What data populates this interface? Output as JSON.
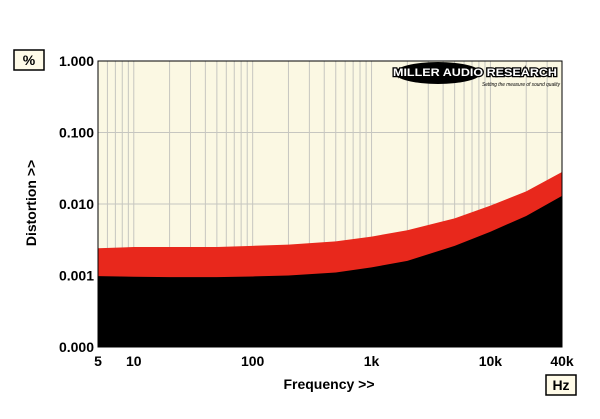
{
  "unit_box_y": "%",
  "unit_box_x": "Hz",
  "logo": {
    "brand": "MILLER AUDIO RESEARCH",
    "tagline": "Setting the measure of sound quality"
  },
  "colors": {
    "plot_bg": "#fbf8e3",
    "grid": "#c6c6c0",
    "upper_band": "#e8281c",
    "lower_region": "#000000"
  },
  "chart_data": {
    "type": "area",
    "xlabel": "Frequency >>",
    "ylabel": "Distortion >>",
    "xscale": "log",
    "yscale": "log",
    "xlim": [
      5,
      40000
    ],
    "ylim": [
      0.0001,
      1.0
    ],
    "x_ticks": [
      {
        "value": 5,
        "label": "5"
      },
      {
        "value": 10,
        "label": "10"
      },
      {
        "value": 100,
        "label": "100"
      },
      {
        "value": 1000,
        "label": "1k"
      },
      {
        "value": 10000,
        "label": "10k"
      },
      {
        "value": 40000,
        "label": "40k"
      }
    ],
    "y_ticks": [
      {
        "value": 0.0001,
        "label": "0.000"
      },
      {
        "value": 0.001,
        "label": "0.001"
      },
      {
        "value": 0.01,
        "label": "0.010"
      },
      {
        "value": 0.1,
        "label": "0.100"
      },
      {
        "value": 1.0,
        "label": "1.000"
      }
    ],
    "grid": true,
    "x": [
      5,
      10,
      20,
      50,
      100,
      200,
      500,
      1000,
      2000,
      5000,
      10000,
      20000,
      40000
    ],
    "series": [
      {
        "color": "#e8281c",
        "values": [
          0.0024,
          0.0025,
          0.0025,
          0.0025,
          0.0026,
          0.0027,
          0.003,
          0.0035,
          0.0043,
          0.0063,
          0.0095,
          0.015,
          0.028
        ]
      },
      {
        "color": "#000000",
        "values": [
          0.00098,
          0.00096,
          0.00095,
          0.00095,
          0.00097,
          0.001,
          0.0011,
          0.0013,
          0.0016,
          0.0026,
          0.0041,
          0.0068,
          0.013
        ]
      }
    ]
  }
}
